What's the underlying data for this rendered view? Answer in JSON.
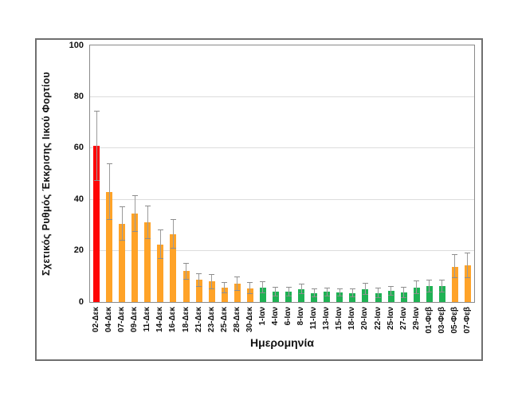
{
  "chart_data": {
    "type": "bar",
    "title": "",
    "xlabel": "Ημερομηνία",
    "ylabel": "Σχετικός Ρυθμός Έκκρισης Ιικού Φορτίου",
    "ylim": [
      0,
      100
    ],
    "yticks": [
      0,
      20,
      40,
      60,
      80,
      100
    ],
    "grid": "horizontal",
    "legend": "none",
    "palette": {
      "red": "#fe0505",
      "orange": "#ffa328",
      "green": "#1fb254"
    },
    "error_bar_color": "#9b9b9b",
    "categories": [
      "02-Δεκ",
      "04-Δεκ",
      "07-Δεκ",
      "09-Δεκ",
      "11-Δεκ",
      "14-Δεκ",
      "16-Δεκ",
      "18-Δεκ",
      "21-Δεκ",
      "23-Δεκ",
      "25-Δεκ",
      "28-Δεκ",
      "30-Δεκ",
      "1-Ιαν",
      "4-Ιαν",
      "6-Ιαν",
      "8-Ιαν",
      "11-Ιαν",
      "13-Ιαν",
      "15-Ιαν",
      "18-Ιαν",
      "20-Ιαν",
      "22-Ιαν",
      "25-Ιαν",
      "27-Ιαν",
      "29-Ιαν",
      "01-Φεβ",
      "03-Φεβ",
      "05-Φεβ",
      "07-Φεβ"
    ],
    "values": [
      61,
      43,
      30.5,
      34.5,
      31,
      22.5,
      26.5,
      12,
      8.6,
      8,
      5.7,
      7.2,
      5.4,
      5.7,
      3.9,
      3.9,
      5.1,
      3.5,
      3.9,
      3.7,
      3.4,
      5.0,
      3.4,
      4.3,
      3.6,
      5.6,
      6.2,
      6.2,
      13.8,
      14.3
    ],
    "error_plus": [
      13.5,
      11,
      6.5,
      7,
      6.5,
      5.7,
      5.6,
      3,
      2.5,
      2.8,
      1.9,
      2.7,
      2.2,
      2.1,
      1.7,
      1.7,
      1.8,
      1.7,
      1.6,
      1.5,
      1.6,
      2.2,
      1.9,
      1.9,
      2.0,
      2.5,
      2.4,
      2.3,
      4.6,
      4.8
    ],
    "error_minus": [
      13.5,
      11,
      6.5,
      7,
      6.4,
      5.6,
      5.6,
      3,
      2.5,
      2.8,
      2,
      2.6,
      2.1,
      2,
      1.5,
      1.5,
      1.8,
      1.5,
      1.5,
      1.4,
      1.4,
      2.0,
      1.7,
      1.8,
      1.8,
      2.2,
      2.2,
      2.2,
      4.4,
      4.8
    ],
    "bar_colors": [
      "red",
      "orange",
      "orange",
      "orange",
      "orange",
      "orange",
      "orange",
      "orange",
      "orange",
      "orange",
      "orange",
      "orange",
      "orange",
      "green",
      "green",
      "green",
      "green",
      "green",
      "green",
      "green",
      "green",
      "green",
      "green",
      "green",
      "green",
      "green",
      "green",
      "green",
      "orange",
      "orange"
    ]
  }
}
